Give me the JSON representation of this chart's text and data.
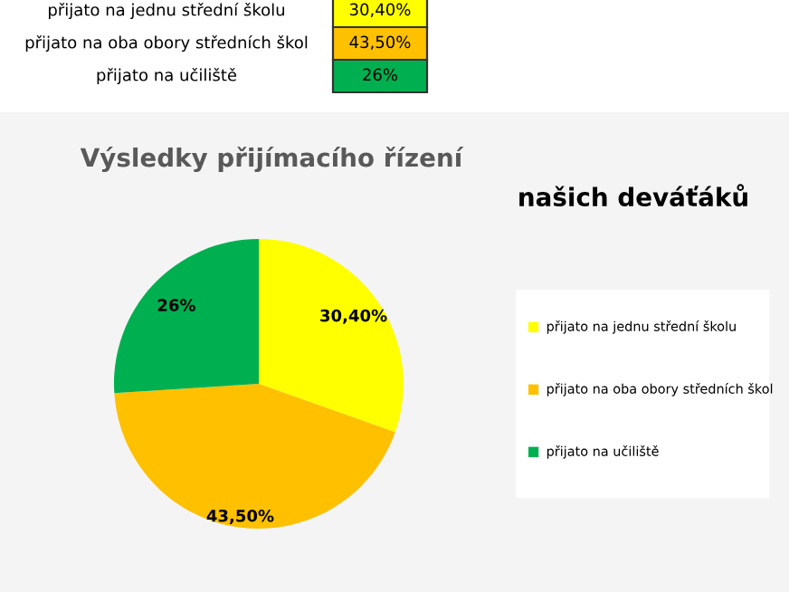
{
  "chart_data": {
    "type": "pie",
    "title": "Výsledky přijímacího řízení",
    "subtitle": "našich deváťáků",
    "categories": [
      "přijato na jednu střední školu",
      "přijato na oba obory středních škol",
      "přijato na učiliště"
    ],
    "values": [
      30.4,
      43.5,
      26
    ],
    "value_labels": [
      "30,40%",
      "43,50%",
      "26%"
    ],
    "colors": [
      "#ffff00",
      "#ffc000",
      "#00b050"
    ],
    "legend": "right"
  }
}
